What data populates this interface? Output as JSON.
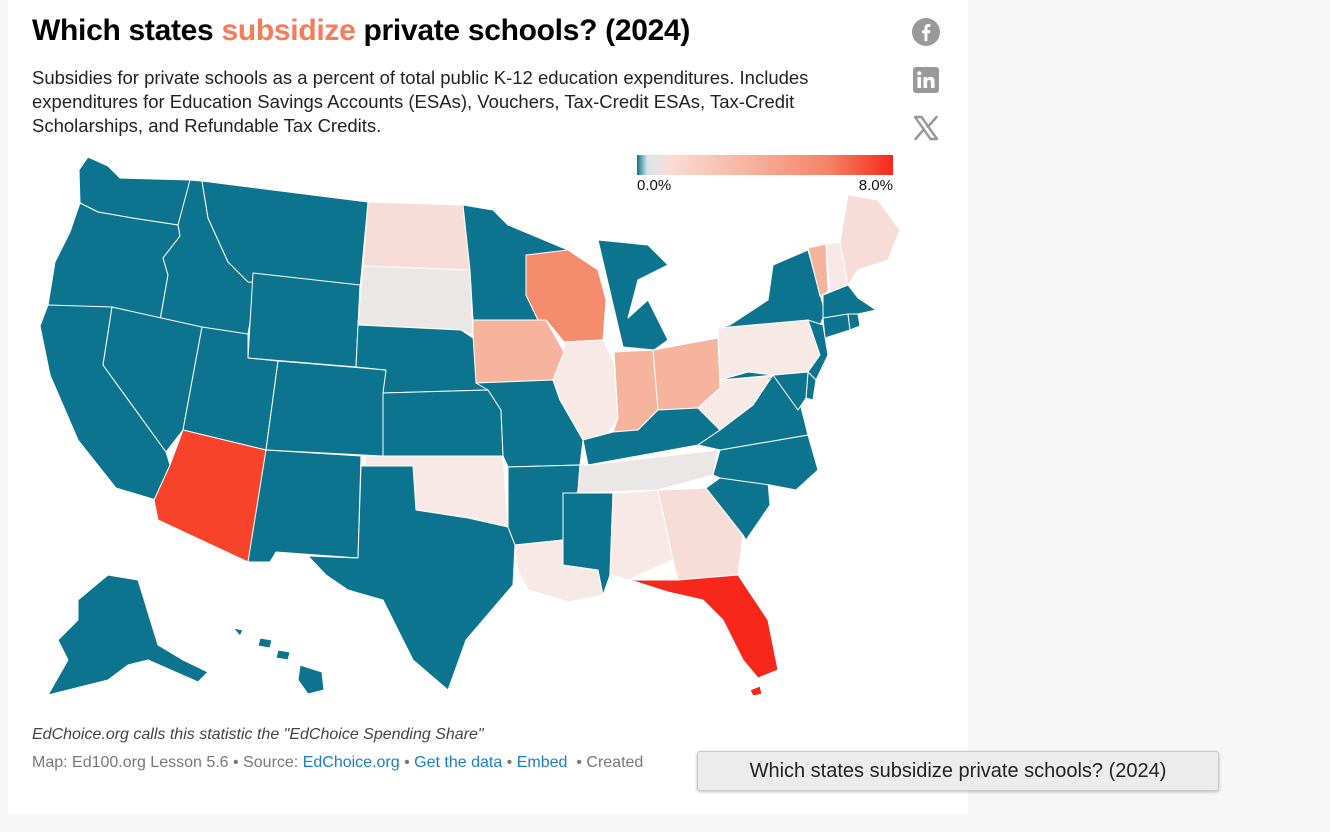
{
  "title": {
    "prefix": "Which states ",
    "highlight": "subsidize",
    "suffix": " private schools? (2024)",
    "highlight_color": "#f47c5a"
  },
  "subtitle": "Subsidies for private schools as a percent of total public K-12 education expenditures. Includes expenditures for Education Savings Accounts (ESAs), Vouchers, Tax-Credit ESAs, Tax-Credit Scholarships, and Refundable Tax Credits.",
  "share": {
    "icons": [
      "facebook-icon",
      "linkedin-icon",
      "x-twitter-icon"
    ],
    "icon_color": "#999999"
  },
  "map_data": {
    "type": "choropleth",
    "region": "United States",
    "scale": {
      "min_label": "0.0%",
      "max_label": "8.0%",
      "min": 0.0,
      "max": 8.0,
      "colors": [
        "#0d7490",
        "#f8ddd6",
        "#f58266",
        "#f7281b"
      ]
    },
    "colors": {
      "zero": "#0d7490",
      "very_low": "#ebe7e7",
      "low": "#f8ddd6",
      "pale": "#f6e9e6",
      "medium": "#f6b39e",
      "high": "#f58c6e",
      "very_high": "#f7432a",
      "max": "#f7281b"
    },
    "states": {
      "WA": "zero",
      "OR": "zero",
      "CA": "zero",
      "ID": "zero",
      "NV": "zero",
      "MT": "zero",
      "WY": "zero",
      "UT": "zero",
      "CO": "zero",
      "AZ": "very_high",
      "NM": "zero",
      "ND": "low",
      "SD": "very_low",
      "NE": "zero",
      "KS": "zero",
      "OK": "pale",
      "TX": "zero",
      "MN": "zero",
      "IA": "medium",
      "MO": "zero",
      "AR": "zero",
      "LA": "pale",
      "WI": "high",
      "IL": "pale",
      "MI": "zero",
      "IN": "medium",
      "OH": "medium",
      "KY": "zero",
      "TN": "very_low",
      "MS": "zero",
      "AL": "pale",
      "GA": "low",
      "FL": "max",
      "SC": "zero",
      "NC": "zero",
      "VA": "zero",
      "WV": "pale",
      "PA": "pale",
      "NY": "zero",
      "VT": "medium",
      "NH": "pale",
      "ME": "low",
      "MA": "zero",
      "CT": "zero",
      "RI": "zero",
      "NJ": "zero",
      "DE": "zero",
      "MD": "zero",
      "AK": "zero",
      "HI": "zero"
    }
  },
  "note": "EdChoice.org calls this statistic the \"EdChoice Spending Share\"",
  "footer": {
    "map_credit": "Map: Ed100.org Lesson 5.6",
    "source_label": "Source:",
    "source_link": "EdChoice.org",
    "get_data": "Get the data",
    "embed": "Embed",
    "created": "Created",
    "separator": "•"
  },
  "tooltip": "Which states subsidize private schools? (2024)"
}
